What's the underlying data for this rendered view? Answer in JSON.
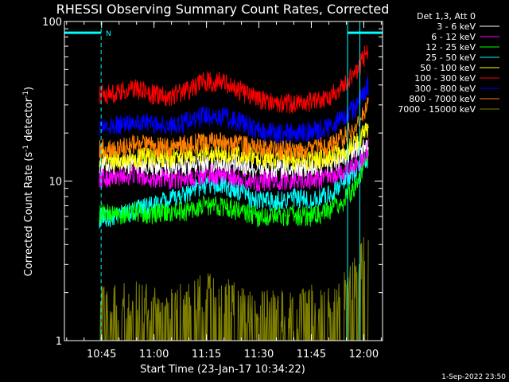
{
  "chart_data": {
    "type": "line",
    "title": "RHESSI Observing Summary Count Rates, Corrected",
    "xlabel": "Start Time (23-Jan-17 10:34:22)",
    "ylabel_main": "Corrected Count Rate (s",
    "ylabel_sup1": "-1",
    "ylabel_mid": " detector",
    "ylabel_sup2": "-1",
    "ylabel_end": ")",
    "ylim": [
      1,
      100
    ],
    "yscale": "log",
    "xlim_minutes": [
      0,
      91
    ],
    "xticks": [
      {
        "label": "10:45",
        "min": 10.63
      },
      {
        "label": "11:00",
        "min": 25.63
      },
      {
        "label": "11:15",
        "min": 40.63
      },
      {
        "label": "11:30",
        "min": 55.63
      },
      {
        "label": "11:45",
        "min": 70.63
      },
      {
        "label": "12:00",
        "min": 85.63
      }
    ],
    "yticks": [
      {
        "label": "1",
        "value": 1
      },
      {
        "label": "10",
        "value": 10
      },
      {
        "label": "100",
        "value": 100
      }
    ],
    "legend_header": "Det 1,3, Att 0",
    "legend_position": "top-right",
    "series": [
      {
        "name": "3 - 6 keV",
        "color": "#ffffff",
        "x": [
          10,
          15,
          20,
          25,
          30,
          35,
          40,
          45,
          50,
          55,
          60,
          65,
          70,
          75,
          80,
          84,
          87
        ],
        "y": [
          13,
          12.5,
          13,
          12.5,
          12.2,
          12.5,
          13,
          13,
          12.5,
          12,
          11.8,
          12,
          12,
          12.5,
          14,
          16.5,
          18
        ]
      },
      {
        "name": "6 - 12 keV",
        "color": "#ff00ff",
        "x": [
          10,
          15,
          20,
          25,
          30,
          35,
          40,
          45,
          50,
          55,
          60,
          65,
          70,
          75,
          80,
          84,
          87
        ],
        "y": [
          10.5,
          10.5,
          11,
          10.5,
          10.2,
          10.5,
          11,
          11,
          10.5,
          10,
          10,
          10.2,
          10.2,
          10.5,
          11.5,
          13,
          16
        ]
      },
      {
        "name": "12 - 25 keV",
        "color": "#00ff00",
        "x": [
          10,
          15,
          20,
          25,
          30,
          35,
          40,
          45,
          50,
          55,
          60,
          65,
          70,
          75,
          80,
          84,
          87
        ],
        "y": [
          6.3,
          6.2,
          6.4,
          6.2,
          6.3,
          6.5,
          7,
          7,
          6.5,
          6,
          6,
          6.1,
          6,
          6.3,
          7.5,
          10,
          15
        ]
      },
      {
        "name": "25 - 50 keV",
        "color": "#00ffff",
        "x": [
          10,
          15,
          20,
          25,
          30,
          35,
          40,
          45,
          50,
          55,
          60,
          65,
          70,
          75,
          80,
          84,
          87
        ],
        "y": [
          5.8,
          6,
          6.5,
          7,
          7.5,
          8.5,
          9.5,
          9.5,
          8.5,
          7.5,
          7.5,
          7.8,
          7.5,
          8,
          10,
          12,
          14
        ]
      },
      {
        "name": "50 - 100 keV",
        "color": "#ffff00",
        "x": [
          10,
          15,
          20,
          25,
          30,
          35,
          40,
          45,
          50,
          55,
          60,
          65,
          70,
          75,
          80,
          84,
          87
        ],
        "y": [
          14,
          13.5,
          14,
          14,
          14,
          14.5,
          15,
          15,
          14.5,
          14,
          13.5,
          13.5,
          13.5,
          14,
          15,
          18,
          22
        ]
      },
      {
        "name": "100 - 300 keV",
        "color": "#ff0000",
        "x": [
          10,
          15,
          20,
          25,
          30,
          35,
          40,
          45,
          50,
          55,
          60,
          65,
          70,
          75,
          80,
          84,
          87
        ],
        "y": [
          35,
          35,
          38,
          35,
          34,
          37,
          42,
          42,
          37,
          33,
          31,
          30.5,
          31,
          33,
          40,
          50,
          70
        ]
      },
      {
        "name": "300 - 800 keV",
        "color": "#0000ff",
        "x": [
          10,
          15,
          20,
          25,
          30,
          35,
          40,
          45,
          50,
          55,
          60,
          65,
          70,
          75,
          80,
          84,
          87
        ],
        "y": [
          22,
          22,
          24,
          23,
          22,
          23.5,
          25.5,
          25.5,
          23.5,
          21,
          20,
          20,
          20.5,
          21.5,
          25,
          30,
          40
        ]
      },
      {
        "name": "800 - 7000 keV",
        "color": "#ff8000",
        "x": [
          10,
          15,
          20,
          25,
          30,
          35,
          40,
          45,
          50,
          55,
          60,
          65,
          70,
          75,
          80,
          84,
          87
        ],
        "y": [
          16,
          16,
          17,
          16.5,
          16.2,
          16.8,
          17.5,
          17.5,
          16.8,
          16,
          15.5,
          15.5,
          15.8,
          16.5,
          19,
          23,
          30
        ]
      },
      {
        "name": "7000 - 15000 keV",
        "color": "#808000",
        "x": [
          10,
          15,
          20,
          25,
          30,
          35,
          40,
          45,
          50,
          55,
          60,
          65,
          70,
          75,
          80,
          84,
          87
        ],
        "y": [
          1.5,
          1.5,
          1.6,
          1.5,
          1.4,
          1.6,
          1.8,
          1.7,
          1.5,
          1.4,
          1.4,
          1.4,
          1.5,
          1.5,
          1.8,
          2.5,
          3.5
        ]
      }
    ],
    "annotations": {
      "n_flag": "N",
      "v_lines_min": [
        10.5,
        81.0,
        84.5,
        91.0
      ],
      "bars": [
        {
          "from_min": 0,
          "to_min": 10.5,
          "value": 85
        },
        {
          "from_min": 81.0,
          "to_min": 91.0,
          "value": 85
        }
      ]
    },
    "timestamp": "1-Sep-2022 23:50"
  }
}
